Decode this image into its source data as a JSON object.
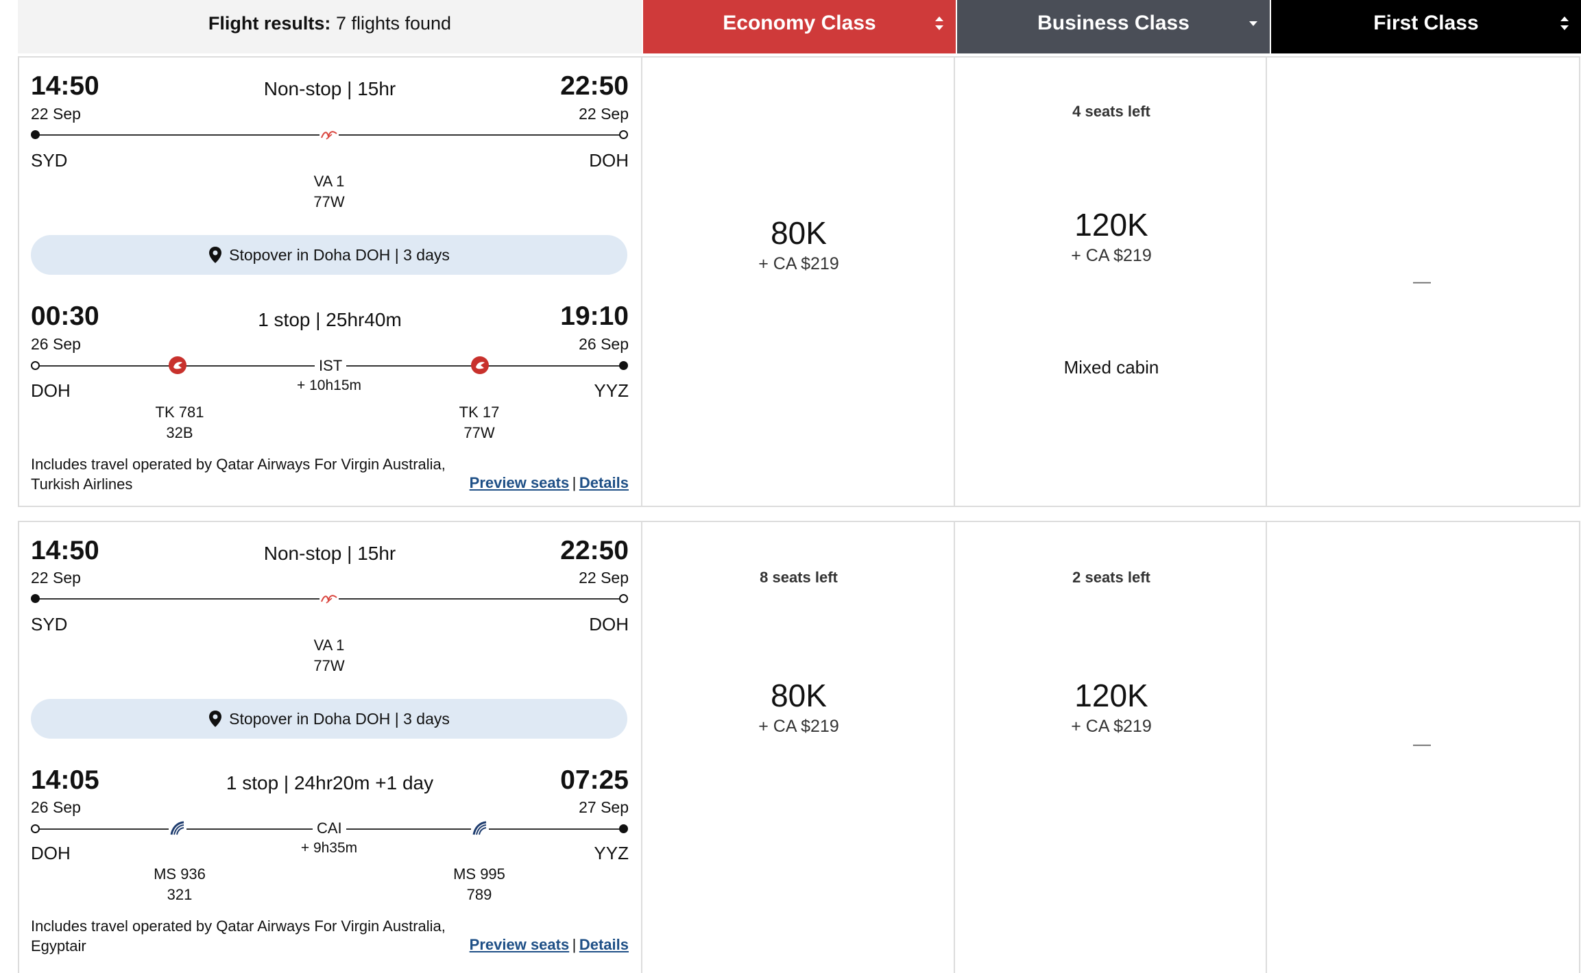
{
  "header": {
    "results_label": "Flight results:",
    "results_count": "7 flights found",
    "economy": "Economy Class",
    "business": "Business Class",
    "first": "First Class"
  },
  "colors": {
    "economy_bg": "#cf3a3a",
    "business_bg": "#4a4e57",
    "first_bg": "#000000",
    "link": "#1e4f86",
    "stopover_bg": "#dfe9f4"
  },
  "results": [
    {
      "leg1": {
        "depart_time": "14:50",
        "depart_date": "22 Sep",
        "origin": "SYD",
        "summary": "Non-stop | 15hr",
        "arrive_time": "22:50",
        "arrive_date": "22 Sep",
        "destination": "DOH",
        "flight": "VA 1",
        "aircraft": "77W",
        "airline_icon": "virgin-australia-logo"
      },
      "stopover": "Stopover in Doha DOH | 3 days",
      "leg2": {
        "depart_time": "00:30",
        "depart_date": "26 Sep",
        "origin": "DOH",
        "summary": "1 stop | 25hr40m",
        "arrive_time": "19:10",
        "arrive_date": "26 Sep",
        "destination": "YYZ",
        "stop": "IST",
        "layover": "+ 10h15m",
        "seg1_flight": "TK 781",
        "seg1_aircraft": "32B",
        "seg2_flight": "TK 17",
        "seg2_aircraft": "77W",
        "airline_icon": "turkish-airlines-logo"
      },
      "note_line1": "Includes travel operated by Qatar Airways For Virgin Australia,",
      "note_line2": "Turkish Airlines",
      "preview_seats": "Preview seats",
      "details": "Details",
      "separator": "|",
      "economy": {
        "seats": "",
        "points": "80K",
        "cash": "+ CA $219"
      },
      "business": {
        "seats": "4 seats left",
        "points": "120K",
        "cash": "+ CA $219",
        "extra": "Mixed cabin"
      },
      "first": {
        "value": "—"
      }
    },
    {
      "leg1": {
        "depart_time": "14:50",
        "depart_date": "22 Sep",
        "origin": "SYD",
        "summary": "Non-stop | 15hr",
        "arrive_time": "22:50",
        "arrive_date": "22 Sep",
        "destination": "DOH",
        "flight": "VA 1",
        "aircraft": "77W",
        "airline_icon": "virgin-australia-logo"
      },
      "stopover": "Stopover in Doha DOH | 3 days",
      "leg2": {
        "depart_time": "14:05",
        "depart_date": "26 Sep",
        "origin": "DOH",
        "summary": "1 stop | 24hr20m +1 day",
        "arrive_time": "07:25",
        "arrive_date": "27 Sep",
        "destination": "YYZ",
        "stop": "CAI",
        "layover": "+ 9h35m",
        "seg1_flight": "MS 936",
        "seg1_aircraft": "321",
        "seg2_flight": "MS 995",
        "seg2_aircraft": "789",
        "airline_icon": "egyptair-logo"
      },
      "note_line1": "Includes travel operated by Qatar Airways For Virgin Australia,",
      "note_line2": "Egyptair",
      "preview_seats": "Preview seats",
      "details": "Details",
      "separator": "|",
      "economy": {
        "seats": "8 seats left",
        "points": "80K",
        "cash": "+ CA $219"
      },
      "business": {
        "seats": "2 seats left",
        "points": "120K",
        "cash": "+ CA $219"
      },
      "first": {
        "value": "—"
      }
    }
  ]
}
